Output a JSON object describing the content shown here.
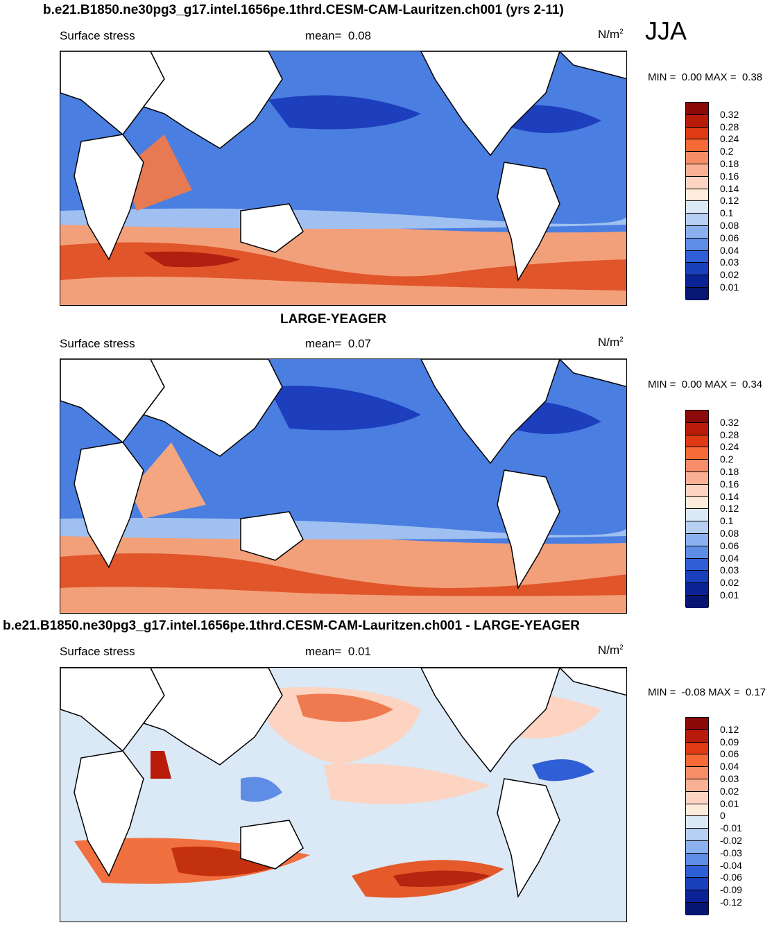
{
  "season": "JJA",
  "panels": [
    {
      "title": "b.e21.B1850.ne30pg3_g17.intel.1656pe.1thrd.CESM-CAM-Lauritzen.ch001 (yrs 2-11)",
      "variable": "Surface stress",
      "mean_label": "mean=",
      "mean_value": "0.08",
      "units_base": "N/m",
      "units_exp": "2",
      "min_label": "MIN =",
      "min_value": "0.00",
      "max_label": "MAX =",
      "max_value": "0.38",
      "colorbar_labels": [
        "0.32",
        "0.28",
        "0.24",
        "0.2",
        "0.18",
        "0.16",
        "0.14",
        "0.12",
        "0.1",
        "0.08",
        "0.06",
        "0.04",
        "0.03",
        "0.02",
        "0.01"
      ]
    },
    {
      "title": "LARGE-YEAGER",
      "variable": "Surface stress",
      "mean_label": "mean=",
      "mean_value": "0.07",
      "units_base": "N/m",
      "units_exp": "2",
      "min_label": "MIN =",
      "min_value": "0.00",
      "max_label": "MAX =",
      "max_value": "0.34",
      "colorbar_labels": [
        "0.32",
        "0.28",
        "0.24",
        "0.2",
        "0.18",
        "0.16",
        "0.14",
        "0.12",
        "0.1",
        "0.08",
        "0.06",
        "0.04",
        "0.03",
        "0.02",
        "0.01"
      ]
    },
    {
      "title": "b.e21.B1850.ne30pg3_g17.intel.1656pe.1thrd.CESM-CAM-Lauritzen.ch001 - LARGE-YEAGER",
      "variable": "Surface stress",
      "mean_label": "mean=",
      "mean_value": "0.01",
      "units_base": "N/m",
      "units_exp": "2",
      "min_label": "MIN =",
      "min_value": "-0.08",
      "max_label": "MAX =",
      "max_value": "0.17",
      "colorbar_labels": [
        "0.12",
        "0.09",
        "0.06",
        "0.04",
        "0.03",
        "0.02",
        "0.01",
        "0",
        "-0.01",
        "-0.02",
        "-0.03",
        "-0.04",
        "-0.06",
        "-0.09",
        "-0.12"
      ]
    }
  ],
  "colors": {
    "abs_scale": [
      "#8b0a0a",
      "#b81b0a",
      "#df3a14",
      "#f56a36",
      "#f78d68",
      "#f9b095",
      "#fcd4c1",
      "#fdebdc",
      "#dbe8f6",
      "#b7cff2",
      "#8ab0ef",
      "#5e8de6",
      "#2f5fd6",
      "#1a3fbd",
      "#0b2296",
      "#071672"
    ],
    "diff_scale": [
      "#8b0a0a",
      "#b81b0a",
      "#df3a14",
      "#f56a36",
      "#f78d68",
      "#f9b095",
      "#fcd4c1",
      "#fdebdc",
      "#dbe8f6",
      "#b7cff2",
      "#8ab0ef",
      "#5e8de6",
      "#2f5fd6",
      "#1a3fbd",
      "#0b2296",
      "#071672"
    ]
  }
}
